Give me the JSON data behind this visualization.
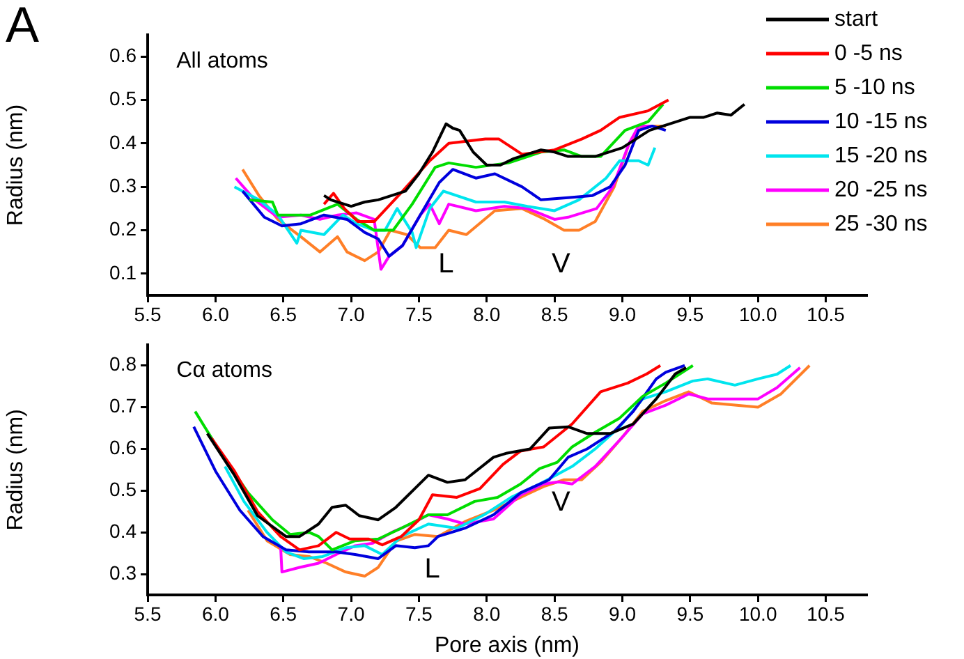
{
  "chart_data": [
    {
      "type": "line",
      "title": "A",
      "ylabel": "Radius (nm)",
      "xlim": [
        5.5,
        10.8
      ],
      "ylim": [
        0.05,
        0.65
      ],
      "xticks": [
        {
          "value": 5.5,
          "label": "5.5"
        },
        {
          "value": 6,
          "label": "6.0"
        },
        {
          "value": 6.5,
          "label": "6.5"
        },
        {
          "value": 7,
          "label": "7.0"
        },
        {
          "value": 7.5,
          "label": "7.5"
        },
        {
          "value": 8,
          "label": "8.0"
        },
        {
          "value": 8.5,
          "label": "8.5"
        },
        {
          "value": 9,
          "label": "9.0"
        },
        {
          "value": 9.5,
          "label": "9.5"
        },
        {
          "value": 10,
          "label": "10.0"
        },
        {
          "value": 10.5,
          "label": "10.5"
        }
      ],
      "yticks": [
        0.1,
        0.2,
        0.3,
        0.4,
        0.5,
        0.6
      ],
      "grid": false,
      "legend": "top right",
      "marker": "none",
      "line_style": "solid",
      "annotations": [
        "All atoms",
        "L",
        "V"
      ],
      "series": [
        {
          "name": "start",
          "color": "#000000",
          "x": [
            6.8,
            6.85,
            7.0,
            7.1,
            7.2,
            7.4,
            7.5,
            7.6,
            7.7,
            7.75,
            7.8,
            7.9,
            8.0,
            8.1,
            8.2,
            8.4,
            8.5,
            8.6,
            8.7,
            8.8,
            9.0,
            9.1,
            9.2,
            9.3,
            9.4,
            9.5,
            9.6,
            9.7,
            9.8,
            9.9
          ],
          "values": [
            0.28,
            0.27,
            0.255,
            0.265,
            0.27,
            0.29,
            0.33,
            0.38,
            0.445,
            0.435,
            0.43,
            0.38,
            0.35,
            0.35,
            0.365,
            0.385,
            0.38,
            0.37,
            0.37,
            0.37,
            0.39,
            0.41,
            0.43,
            0.44,
            0.45,
            0.46,
            0.46,
            0.47,
            0.465,
            0.49
          ]
        },
        {
          "name": "0 -5 ns",
          "color": "#ff0000",
          "x": [
            6.8,
            6.87,
            6.95,
            7.05,
            7.17,
            7.38,
            7.58,
            7.72,
            7.99,
            8.09,
            8.26,
            8.5,
            8.7,
            8.84,
            8.98,
            9.19,
            9.34
          ],
          "values": [
            0.26,
            0.285,
            0.25,
            0.22,
            0.22,
            0.29,
            0.36,
            0.4,
            0.41,
            0.41,
            0.375,
            0.385,
            0.41,
            0.43,
            0.46,
            0.475,
            0.5
          ]
        },
        {
          "name": "5 -10 ns",
          "color": "#00dd00",
          "x": [
            6.25,
            6.42,
            6.46,
            6.7,
            6.9,
            7.04,
            7.17,
            7.31,
            7.45,
            7.62,
            7.72,
            7.92,
            8.16,
            8.4,
            8.57,
            8.7,
            8.84,
            9.02,
            9.19,
            9.3
          ],
          "values": [
            0.27,
            0.265,
            0.235,
            0.235,
            0.26,
            0.225,
            0.2,
            0.2,
            0.26,
            0.345,
            0.355,
            0.345,
            0.355,
            0.38,
            0.385,
            0.37,
            0.37,
            0.43,
            0.45,
            0.49
          ]
        },
        {
          "name": "10 -15 ns",
          "color": "#0000dd",
          "x": [
            6.2,
            6.36,
            6.49,
            6.63,
            6.8,
            6.97,
            7.1,
            7.2,
            7.28,
            7.38,
            7.51,
            7.65,
            7.75,
            7.92,
            8.06,
            8.26,
            8.4,
            8.6,
            8.78,
            8.91,
            9.02,
            9.12,
            9.22,
            9.32
          ],
          "values": [
            0.29,
            0.23,
            0.21,
            0.215,
            0.235,
            0.225,
            0.195,
            0.18,
            0.14,
            0.165,
            0.235,
            0.31,
            0.34,
            0.32,
            0.33,
            0.3,
            0.27,
            0.275,
            0.28,
            0.3,
            0.35,
            0.43,
            0.44,
            0.43
          ]
        },
        {
          "name": "15 -20 ns",
          "color": "#00e5ee",
          "x": [
            6.14,
            6.32,
            6.46,
            6.6,
            6.63,
            6.8,
            6.94,
            7.04,
            7.17,
            7.25,
            7.34,
            7.45,
            7.48,
            7.58,
            7.68,
            7.92,
            8.13,
            8.3,
            8.5,
            8.68,
            8.88,
            8.98,
            9.12,
            9.19,
            9.24
          ],
          "values": [
            0.3,
            0.27,
            0.235,
            0.17,
            0.2,
            0.19,
            0.235,
            0.215,
            0.2,
            0.2,
            0.25,
            0.195,
            0.16,
            0.25,
            0.29,
            0.265,
            0.265,
            0.255,
            0.245,
            0.27,
            0.32,
            0.36,
            0.36,
            0.35,
            0.39
          ]
        },
        {
          "name": "20 -25 ns",
          "color": "#ff00ff",
          "x": [
            6.15,
            6.29,
            6.46,
            6.63,
            6.77,
            6.9,
            7.04,
            7.17,
            7.22,
            7.28,
            7.38,
            7.51,
            7.58,
            7.65,
            7.72,
            7.92,
            8.13,
            8.3,
            8.5,
            8.6,
            8.81,
            8.93,
            9.05,
            9.12,
            9.22
          ],
          "values": [
            0.32,
            0.27,
            0.23,
            0.235,
            0.225,
            0.235,
            0.24,
            0.225,
            0.11,
            0.14,
            0.165,
            0.235,
            0.26,
            0.215,
            0.26,
            0.245,
            0.255,
            0.25,
            0.225,
            0.23,
            0.25,
            0.3,
            0.4,
            0.44,
            0.44
          ]
        },
        {
          "name": "25 -30 ns",
          "color": "#ff7f27",
          "x": [
            6.2,
            6.32,
            6.46,
            6.63,
            6.77,
            6.9,
            6.97,
            7.1,
            7.2,
            7.29,
            7.41,
            7.51,
            7.62,
            7.72,
            7.85,
            8.06,
            8.26,
            8.43,
            8.57,
            8.68,
            8.8,
            8.94,
            9.05,
            9.15,
            9.32
          ],
          "values": [
            0.34,
            0.28,
            0.225,
            0.185,
            0.15,
            0.185,
            0.15,
            0.13,
            0.15,
            0.2,
            0.19,
            0.16,
            0.16,
            0.2,
            0.19,
            0.245,
            0.25,
            0.225,
            0.2,
            0.2,
            0.22,
            0.3,
            0.4,
            0.44,
            0.44
          ]
        }
      ]
    },
    {
      "type": "line",
      "xlabel": "Pore axis (nm)",
      "ylabel": "Radius (nm)",
      "xlim": [
        5.5,
        10.8
      ],
      "ylim": [
        0.25,
        0.85
      ],
      "xticks": [
        {
          "value": 5.5,
          "label": "5.5"
        },
        {
          "value": 6,
          "label": "6.0"
        },
        {
          "value": 6.5,
          "label": "6.5"
        },
        {
          "value": 7,
          "label": "7.0"
        },
        {
          "value": 7.5,
          "label": "7.5"
        },
        {
          "value": 8,
          "label": "8.0"
        },
        {
          "value": 8.5,
          "label": "8.5"
        },
        {
          "value": 9,
          "label": "9.0"
        },
        {
          "value": 9.5,
          "label": "9.5"
        },
        {
          "value": 10,
          "label": "10.0"
        },
        {
          "value": 10.5,
          "label": "10.5"
        }
      ],
      "yticks": [
        0.3,
        0.4,
        0.5,
        0.6,
        0.7,
        0.8
      ],
      "grid": false,
      "legend": false,
      "marker": "none",
      "line_style": "solid",
      "annotations": [
        "Cα atoms",
        "L",
        "V"
      ],
      "series": [
        {
          "color": "#000000",
          "x": [
            5.94,
            6.14,
            6.31,
            6.52,
            6.62,
            6.76,
            6.86,
            6.96,
            7.06,
            7.2,
            7.33,
            7.57,
            7.71,
            7.84,
            8.05,
            8.15,
            8.32,
            8.46,
            8.6,
            8.74,
            8.91,
            9.08,
            9.25,
            9.39,
            9.47
          ],
          "values": [
            0.637,
            0.537,
            0.44,
            0.39,
            0.39,
            0.42,
            0.46,
            0.465,
            0.44,
            0.43,
            0.46,
            0.537,
            0.52,
            0.526,
            0.58,
            0.59,
            0.6,
            0.65,
            0.653,
            0.637,
            0.637,
            0.66,
            0.72,
            0.78,
            0.795
          ]
        },
        {
          "color": "#ff0000",
          "x": [
            5.97,
            6.14,
            6.31,
            6.48,
            6.62,
            6.76,
            6.89,
            6.99,
            7.13,
            7.23,
            7.37,
            7.5,
            7.6,
            7.78,
            7.95,
            8.12,
            8.25,
            8.42,
            8.63,
            8.84,
            9.04,
            9.18,
            9.28
          ],
          "values": [
            0.626,
            0.547,
            0.45,
            0.39,
            0.358,
            0.368,
            0.4,
            0.384,
            0.384,
            0.37,
            0.39,
            0.43,
            0.49,
            0.484,
            0.505,
            0.563,
            0.595,
            0.605,
            0.66,
            0.737,
            0.758,
            0.78,
            0.8
          ]
        },
        {
          "color": "#00dd00",
          "x": [
            5.85,
            6.04,
            6.24,
            6.42,
            6.55,
            6.69,
            6.76,
            6.86,
            7.03,
            7.2,
            7.37,
            7.57,
            7.71,
            7.91,
            8.08,
            8.25,
            8.39,
            8.52,
            8.63,
            8.8,
            8.98,
            9.15,
            9.32,
            9.52
          ],
          "values": [
            0.69,
            0.59,
            0.495,
            0.43,
            0.395,
            0.4,
            0.39,
            0.358,
            0.38,
            0.384,
            0.41,
            0.442,
            0.442,
            0.474,
            0.484,
            0.516,
            0.553,
            0.568,
            0.605,
            0.64,
            0.674,
            0.726,
            0.758,
            0.8
          ]
        },
        {
          "color": "#0000dd",
          "x": [
            5.84,
            6.0,
            6.18,
            6.35,
            6.52,
            6.69,
            6.89,
            7.03,
            7.2,
            7.33,
            7.47,
            7.57,
            7.64,
            7.84,
            8.05,
            8.25,
            8.46,
            8.6,
            8.74,
            8.94,
            9.08,
            9.25,
            9.32,
            9.46
          ],
          "values": [
            0.653,
            0.547,
            0.453,
            0.39,
            0.358,
            0.353,
            0.353,
            0.347,
            0.337,
            0.368,
            0.363,
            0.368,
            0.39,
            0.41,
            0.442,
            0.495,
            0.526,
            0.58,
            0.6,
            0.642,
            0.69,
            0.768,
            0.784,
            0.8
          ]
        },
        {
          "color": "#00e5ee",
          "x": [
            6.07,
            6.21,
            6.38,
            6.52,
            6.65,
            6.79,
            6.96,
            7.1,
            7.23,
            7.37,
            7.57,
            7.78,
            7.98,
            8.18,
            8.39,
            8.63,
            8.8,
            8.98,
            9.15,
            9.32,
            9.52,
            9.63,
            9.83,
            10.0,
            10.14,
            10.24
          ],
          "values": [
            0.558,
            0.474,
            0.4,
            0.353,
            0.337,
            0.342,
            0.363,
            0.368,
            0.347,
            0.39,
            0.42,
            0.41,
            0.442,
            0.484,
            0.516,
            0.558,
            0.6,
            0.653,
            0.72,
            0.737,
            0.763,
            0.768,
            0.753,
            0.768,
            0.779,
            0.8
          ]
        },
        {
          "color": "#ff00ff",
          "x": [
            6.48,
            6.49,
            6.62,
            6.76,
            6.89,
            7.03,
            7.16,
            7.3,
            7.44,
            7.57,
            7.71,
            7.84,
            8.05,
            8.25,
            8.42,
            8.53,
            8.63,
            8.8,
            8.98,
            9.15,
            9.32,
            9.49,
            9.63,
            9.83,
            10.0,
            10.14,
            10.31
          ],
          "values": [
            0.368,
            0.305,
            0.316,
            0.326,
            0.347,
            0.368,
            0.374,
            0.4,
            0.42,
            0.442,
            0.432,
            0.42,
            0.432,
            0.49,
            0.516,
            0.521,
            0.516,
            0.558,
            0.621,
            0.684,
            0.705,
            0.732,
            0.72,
            0.72,
            0.72,
            0.747,
            0.795
          ]
        },
        {
          "color": "#ff7f27",
          "x": [
            6.24,
            6.38,
            6.55,
            6.69,
            6.82,
            6.96,
            7.1,
            7.2,
            7.33,
            7.47,
            7.64,
            7.84,
            8.05,
            8.25,
            8.42,
            8.57,
            8.7,
            8.84,
            9.01,
            9.15,
            9.32,
            9.49,
            9.66,
            9.83,
            10.0,
            10.17,
            10.38
          ],
          "values": [
            0.453,
            0.38,
            0.347,
            0.342,
            0.326,
            0.305,
            0.295,
            0.316,
            0.379,
            0.395,
            0.39,
            0.426,
            0.453,
            0.484,
            0.51,
            0.526,
            0.526,
            0.568,
            0.632,
            0.69,
            0.716,
            0.737,
            0.71,
            0.705,
            0.7,
            0.732,
            0.8
          ]
        }
      ]
    }
  ]
}
